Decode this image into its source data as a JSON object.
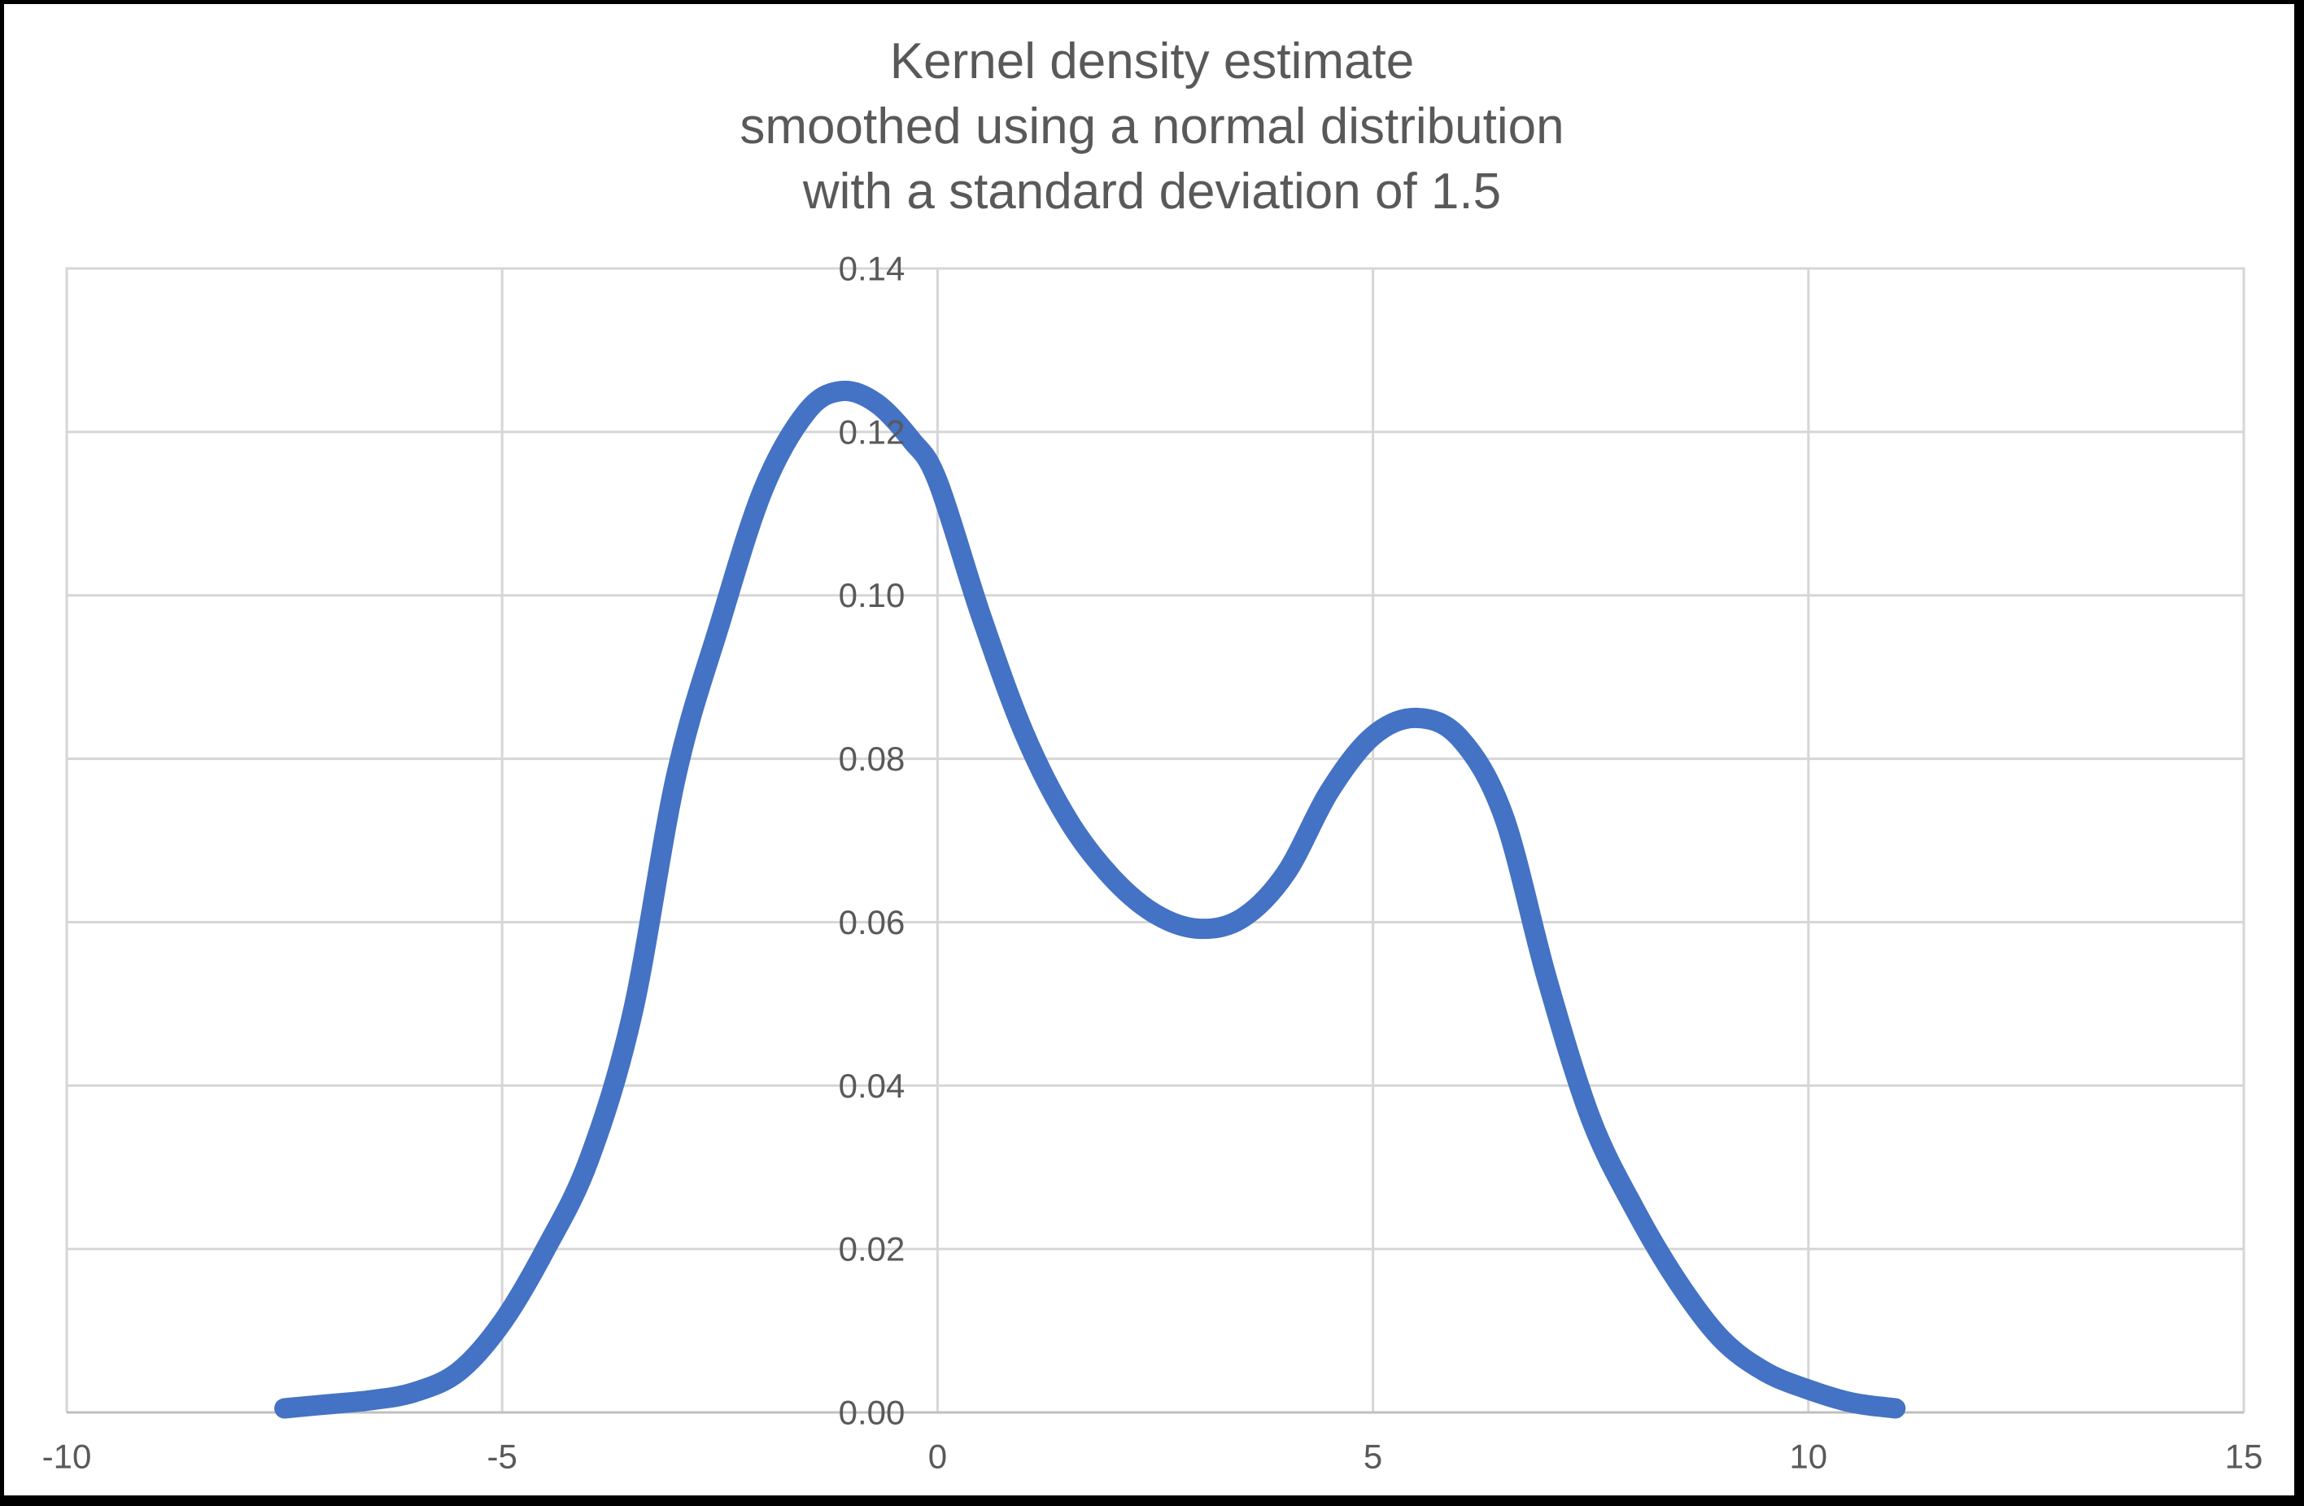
{
  "chart_data": {
    "type": "line",
    "title_lines": [
      "Kernel density estimate",
      "smoothed using a normal distribution",
      "with a standard deviation of 1.5"
    ],
    "xlabel": "",
    "ylabel": "",
    "xlim": [
      -10,
      15
    ],
    "ylim": [
      0,
      0.14
    ],
    "x_major_unit": 5,
    "y_major_unit": 0.02,
    "grid": true,
    "legend": "none",
    "x_ticks": [
      {
        "label": "-10",
        "value": -10
      },
      {
        "label": "-5",
        "value": -5
      },
      {
        "label": "0",
        "value": 0
      },
      {
        "label": "5",
        "value": 5
      },
      {
        "label": "10",
        "value": 10
      },
      {
        "label": "15",
        "value": 15
      }
    ],
    "y_ticks": [
      {
        "label": "0.00",
        "value": 0.0
      },
      {
        "label": "0.02",
        "value": 0.02
      },
      {
        "label": "0.04",
        "value": 0.04
      },
      {
        "label": "0.06",
        "value": 0.06
      },
      {
        "label": "0.08",
        "value": 0.08
      },
      {
        "label": "0.10",
        "value": 0.1
      },
      {
        "label": "0.12",
        "value": 0.12
      },
      {
        "label": "0.14",
        "value": 0.14
      }
    ],
    "curve": {
      "stroke_width": 25,
      "points": [
        [
          -7.5,
          0.0005
        ],
        [
          -7.0,
          0.001
        ],
        [
          -6.5,
          0.0015
        ],
        [
          -6.0,
          0.0025
        ],
        [
          -5.5,
          0.005
        ],
        [
          -5.0,
          0.011
        ],
        [
          -4.5,
          0.02
        ],
        [
          -4.0,
          0.031
        ],
        [
          -3.5,
          0.049
        ],
        [
          -3.0,
          0.078
        ],
        [
          -2.5,
          0.0965
        ],
        [
          -2.0,
          0.113
        ],
        [
          -1.5,
          0.1225
        ],
        [
          -1.1,
          0.125
        ],
        [
          -0.7,
          0.1235
        ],
        [
          -0.3,
          0.119
        ],
        [
          0.0,
          0.114
        ],
        [
          0.5,
          0.0975
        ],
        [
          1.0,
          0.083
        ],
        [
          1.5,
          0.0725
        ],
        [
          2.0,
          0.0655
        ],
        [
          2.5,
          0.061
        ],
        [
          3.0,
          0.0592
        ],
        [
          3.5,
          0.0605
        ],
        [
          4.0,
          0.066
        ],
        [
          4.5,
          0.076
        ],
        [
          5.0,
          0.0828
        ],
        [
          5.5,
          0.085
        ],
        [
          6.0,
          0.0825
        ],
        [
          6.5,
          0.073
        ],
        [
          7.0,
          0.053
        ],
        [
          7.5,
          0.036
        ],
        [
          8.0,
          0.025
        ],
        [
          8.5,
          0.016
        ],
        [
          9.0,
          0.009
        ],
        [
          9.5,
          0.005
        ],
        [
          10.0,
          0.0028
        ],
        [
          10.5,
          0.0012
        ],
        [
          11.0,
          0.0005
        ]
      ]
    },
    "annotations": [],
    "key_features": {
      "first_peak": {
        "x": -1.1,
        "y": 0.125
      },
      "local_min": {
        "x": 3.0,
        "y": 0.059
      },
      "second_peak": {
        "x": 5.5,
        "y": 0.085
      },
      "curve_x_range": [
        -7.5,
        11.0
      ]
    }
  },
  "colors": {
    "line": "#4472C4",
    "gridline": "#D6D6D6",
    "plot_border": "#D6D6D6",
    "axis_line": "#BFBFBF",
    "tick_label": "#595959",
    "title": "#595959",
    "frame": "#000000",
    "background": "#FFFFFF"
  }
}
